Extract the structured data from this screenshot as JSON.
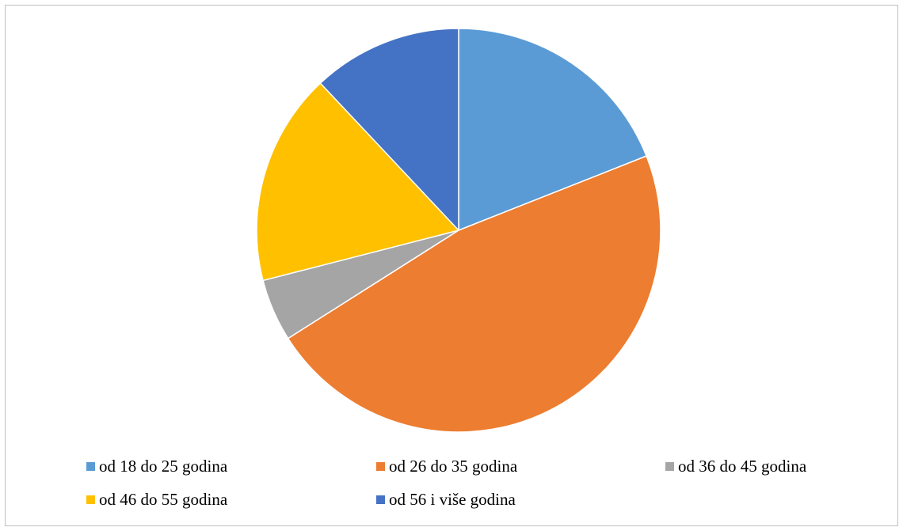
{
  "chart_data": {
    "type": "pie",
    "title": "",
    "categories": [
      "od 18 do 25 godina",
      "od 26 do 35 godina",
      "od 36 do 45 godina",
      "od 46 do 55 godina",
      "od 56 i više godina"
    ],
    "values": [
      19,
      47,
      5,
      17,
      12
    ],
    "colors": [
      "#5B9BD5",
      "#ED7D31",
      "#A5A5A5",
      "#FFC000",
      "#4472C4"
    ],
    "start_angle_deg": 0,
    "direction": "clockwise",
    "legend_position": "bottom"
  }
}
